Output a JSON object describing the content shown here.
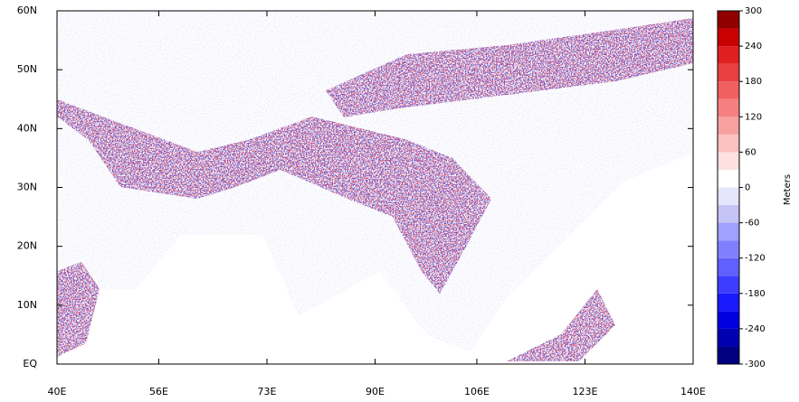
{
  "map": {
    "xlim": [
      40,
      140
    ],
    "ylim": [
      0,
      60
    ],
    "xticks": [
      {
        "value": 40,
        "label": "40E"
      },
      {
        "value": 56,
        "label": "56E"
      },
      {
        "value": 73,
        "label": "73E"
      },
      {
        "value": 90,
        "label": "90E"
      },
      {
        "value": 106,
        "label": "106E"
      },
      {
        "value": 123,
        "label": "123E"
      },
      {
        "value": 140,
        "label": "140E"
      }
    ],
    "yticks": [
      {
        "value": 0,
        "label": "EQ"
      },
      {
        "value": 10,
        "label": "10N"
      },
      {
        "value": 20,
        "label": "20N"
      },
      {
        "value": 30,
        "label": "30N"
      },
      {
        "value": 40,
        "label": "40N"
      },
      {
        "value": 50,
        "label": "50N"
      },
      {
        "value": 60,
        "label": "60N"
      }
    ],
    "colorbar": {
      "label": "Meters",
      "lim": [
        -300,
        300
      ],
      "ticks": [
        -300,
        -240,
        -180,
        -120,
        -60,
        0,
        60,
        120,
        180,
        240,
        300
      ],
      "colors": [
        "#000080",
        "#0000b0",
        "#0000e0",
        "#1a1aff",
        "#3d3dff",
        "#6060ff",
        "#8080ff",
        "#a0a0ff",
        "#c4c4f4",
        "#e4e4fa",
        "#ffffff",
        "#fde0e0",
        "#fcc0c0",
        "#f8a0a0",
        "#f48080",
        "#f06060",
        "#e84040",
        "#e02020",
        "#c80000",
        "#900000"
      ]
    }
  }
}
